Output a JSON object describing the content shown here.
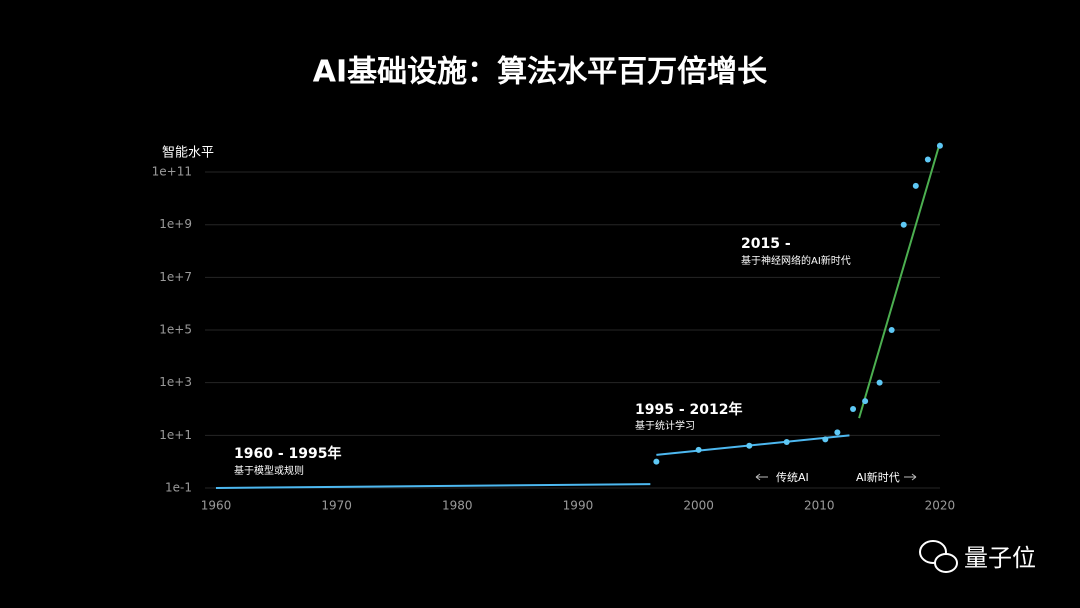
{
  "chart_data": {
    "type": "scatter",
    "title": "AI基础设施：算法水平百万倍增长",
    "y_label": "智能水平",
    "log_y": true,
    "grid": true,
    "xlim": [
      1959,
      2021
    ],
    "ylim": [
      0.05,
      2000000000000.0
    ],
    "xticks": [
      1960,
      1970,
      1980,
      1990,
      2000,
      2010,
      2020
    ],
    "yticks": [
      {
        "value": 0.1,
        "label": "1e-1"
      },
      {
        "value": 10,
        "label": "1e+1"
      },
      {
        "value": 1000,
        "label": "1e+3"
      },
      {
        "value": 100000,
        "label": "1e+5"
      },
      {
        "value": 10000000,
        "label": "1e+7"
      },
      {
        "value": 1000000000,
        "label": "1e+9"
      },
      {
        "value": 100000000000,
        "label": "1e+11"
      }
    ],
    "points": {
      "color": "#5ec8f5",
      "x": [
        1996.5,
        2000,
        2004.2,
        2007.3,
        2010.5,
        2011.5,
        2012.8,
        2013.8,
        2015,
        2016,
        2017,
        2018,
        2019,
        2020
      ],
      "values": [
        1,
        2.8,
        4,
        5.6,
        7,
        13,
        100,
        200,
        1000,
        100000,
        1000000000,
        30000000000,
        300000000000,
        1000000000000
      ]
    },
    "series": [
      {
        "color": "#4db8f0",
        "x": [
          1960,
          1996
        ],
        "values": [
          0.1,
          0.14
        ]
      },
      {
        "color": "#4db8f0",
        "x": [
          1996.5,
          2012.5
        ],
        "values": [
          1.8,
          10
        ]
      },
      {
        "color": "#4caf50",
        "x": [
          2013.3,
          2020
        ],
        "values": [
          45,
          1300000000000
        ]
      }
    ],
    "annotations": [
      {
        "title": "1960 - 1995年",
        "text": "基于模型或规则"
      },
      {
        "title": "1995 - 2012年",
        "text": "基于统计学习"
      },
      {
        "title": "2015 -",
        "text": "基于神经网络的AI新时代"
      }
    ],
    "era_labels": [
      "传统AI",
      "AI新时代"
    ],
    "watermark": "量子位"
  }
}
